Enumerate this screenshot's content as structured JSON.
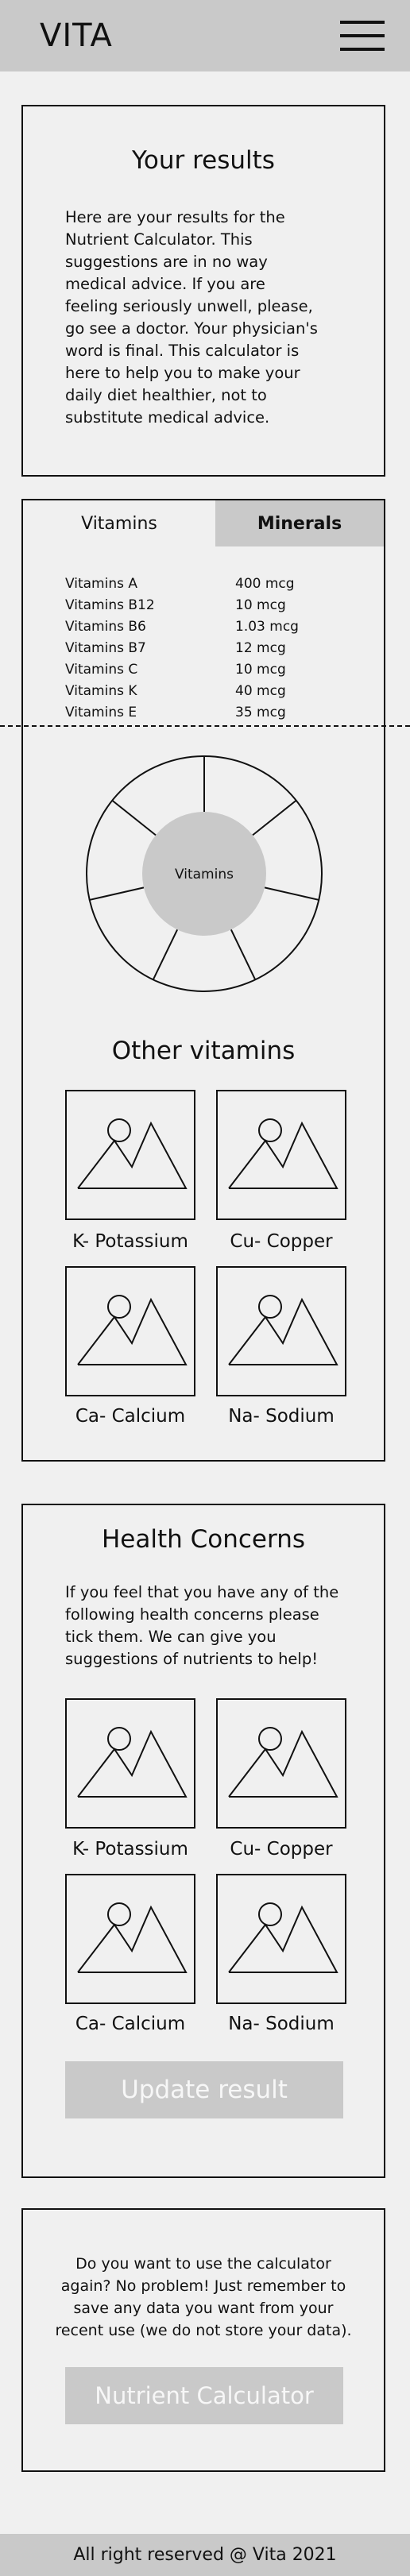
{
  "header": {
    "logo": "VITA",
    "menu_icon": "hamburger-menu-icon"
  },
  "results": {
    "title": "Your results",
    "lines": [
      "Here are your results for the",
      "Nutrient Calculator. This",
      "suggestions are in no way",
      "medical advice. If you are",
      "feeling seriously unwell, please,",
      "go see a doctor. Your physician's",
      "word is final. This calculator is",
      "here to help you to make your",
      "daily diet healthier, not to",
      "substitute medical advice."
    ]
  },
  "tabs": {
    "vitamins": "Vitamins",
    "minerals": "Minerals"
  },
  "vitamins": [
    {
      "name": "Vitamins A",
      "value": "400 mcg"
    },
    {
      "name": "Vitamins B12",
      "value": "10 mcg"
    },
    {
      "name": "Vitamins B6",
      "value": "1.03 mcg"
    },
    {
      "name": "Vitamins B7",
      "value": "12 mcg"
    },
    {
      "name": "Vitamins C",
      "value": "10 mcg"
    },
    {
      "name": "Vitamins K",
      "value": "40 mcg"
    },
    {
      "name": "Vitamins E",
      "value": "35 mcg"
    }
  ],
  "donut": {
    "center_label": "Vitamins",
    "segments": 7,
    "center_color": "#c9c9c9"
  },
  "other_vitamins": {
    "title": "Other vitamins",
    "items": [
      {
        "label": "K- Potassium",
        "icon": "image-placeholder-icon"
      },
      {
        "label": "Cu- Copper",
        "icon": "image-placeholder-icon"
      },
      {
        "label": "Ca- Calcium",
        "icon": "image-placeholder-icon"
      },
      {
        "label": "Na- Sodium",
        "icon": "image-placeholder-icon"
      }
    ]
  },
  "health": {
    "title": "Health Concerns",
    "lines": [
      "If you feel that you have any of the",
      "following health concerns please",
      "tick them. We can give you",
      "suggestions of nutrients to help!"
    ],
    "items": [
      {
        "label": "K- Potassium",
        "icon": "image-placeholder-icon"
      },
      {
        "label": "Cu- Copper",
        "icon": "image-placeholder-icon"
      },
      {
        "label": "Ca- Calcium",
        "icon": "image-placeholder-icon"
      },
      {
        "label": "Na- Sodium",
        "icon": "image-placeholder-icon"
      }
    ],
    "button": "Update result"
  },
  "calculator": {
    "lines": [
      "Do you want to use the calculator",
      "again? No problem! Just remember to",
      "save any data you want from your",
      "recent use (we do not store your data)."
    ],
    "button": "Nutrient Calculator"
  },
  "footer": {
    "text": "All right reserved @ Vita 2021"
  },
  "colors": {
    "header_bg": "#c9c9c9",
    "page_bg": "#f0f0f0",
    "button_bg": "#c9c9c9",
    "border": "#111111"
  }
}
